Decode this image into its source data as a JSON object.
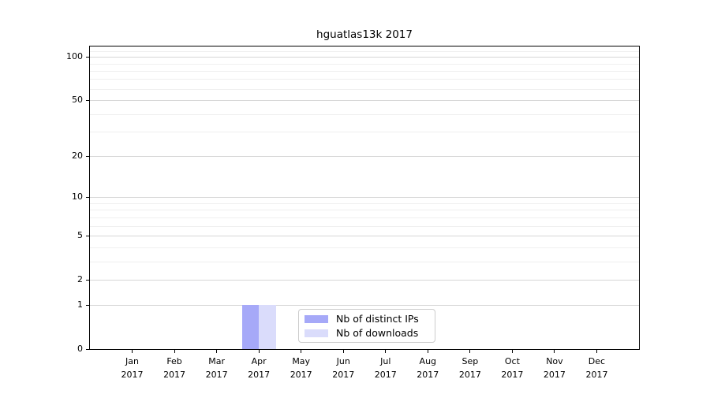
{
  "chart_data": {
    "type": "bar",
    "title": "hguatlas13k 2017",
    "categories": [
      "Jan",
      "Feb",
      "Mar",
      "Apr",
      "May",
      "Jun",
      "Jul",
      "Aug",
      "Sep",
      "Oct",
      "Nov",
      "Dec"
    ],
    "category_year": "2017",
    "series": [
      {
        "name": "Nb of distinct IPs",
        "color": "#a6a9f8",
        "values": [
          0,
          0,
          0,
          1,
          0,
          0,
          0,
          0,
          0,
          0,
          0,
          0
        ]
      },
      {
        "name": "Nb of downloads",
        "color": "#dadcfb",
        "values": [
          0,
          0,
          0,
          1,
          0,
          0,
          0,
          0,
          0,
          0,
          0,
          0
        ]
      }
    ],
    "xlabel": "",
    "ylabel": "",
    "y_axis": {
      "scale": "log1p",
      "ylim": [
        0,
        118
      ],
      "ticks": [
        0,
        1,
        2,
        5,
        10,
        20,
        50,
        100
      ],
      "tick_labels": [
        "0",
        "1",
        "2",
        "5",
        "10",
        "20",
        "50",
        "100"
      ],
      "minor_gridline_values": [
        3,
        4,
        6,
        7,
        8,
        9,
        30,
        40,
        60,
        70,
        80,
        90,
        110
      ]
    },
    "grid": "on",
    "legend_position": "inside lower-center"
  },
  "colors": {
    "major_grid": "#d6d6d6",
    "minor_grid": "#efefef",
    "spine": "#000000",
    "background": "#ffffff"
  }
}
